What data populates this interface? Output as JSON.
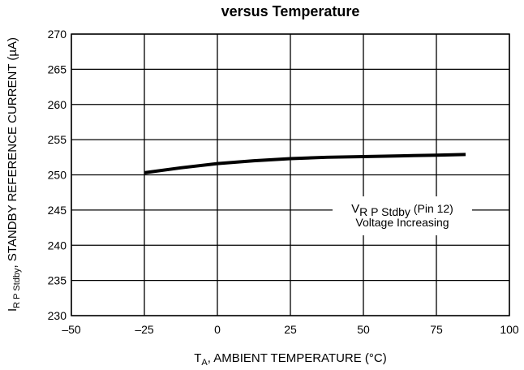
{
  "chart_data": {
    "type": "line",
    "title": "versus Temperature",
    "x_label": {
      "main": "T",
      "sub": "A",
      "rest": ", AMBIENT TEMPERATURE (°C)"
    },
    "y_label": {
      "main": "I",
      "sub": "R P Stdby",
      "rest": ", STANDBY REFERENCE CURRENT (µA)"
    },
    "annotation": {
      "line1_main": "V",
      "line1_sub": "R P Stdby",
      "line1_rest": " (Pin 12)",
      "line2": "Voltage Increasing"
    },
    "x": [
      -25,
      -12.5,
      0,
      12.5,
      25,
      37.5,
      50,
      62.5,
      75,
      85
    ],
    "series": [
      {
        "color": "#000000",
        "values": [
          250.3,
          251.0,
          251.6,
          252.0,
          252.3,
          252.5,
          252.6,
          252.7,
          252.8,
          252.9
        ]
      }
    ],
    "xlim": [
      -50,
      100
    ],
    "xticks": [
      {
        "value": -50,
        "label": "–50"
      },
      {
        "value": -25,
        "label": "–25"
      },
      0,
      25,
      50,
      75,
      100
    ],
    "ylim": [
      230,
      270
    ],
    "yticks": [
      230,
      235,
      240,
      245,
      250,
      255,
      260,
      265,
      270
    ],
    "grid": true
  }
}
